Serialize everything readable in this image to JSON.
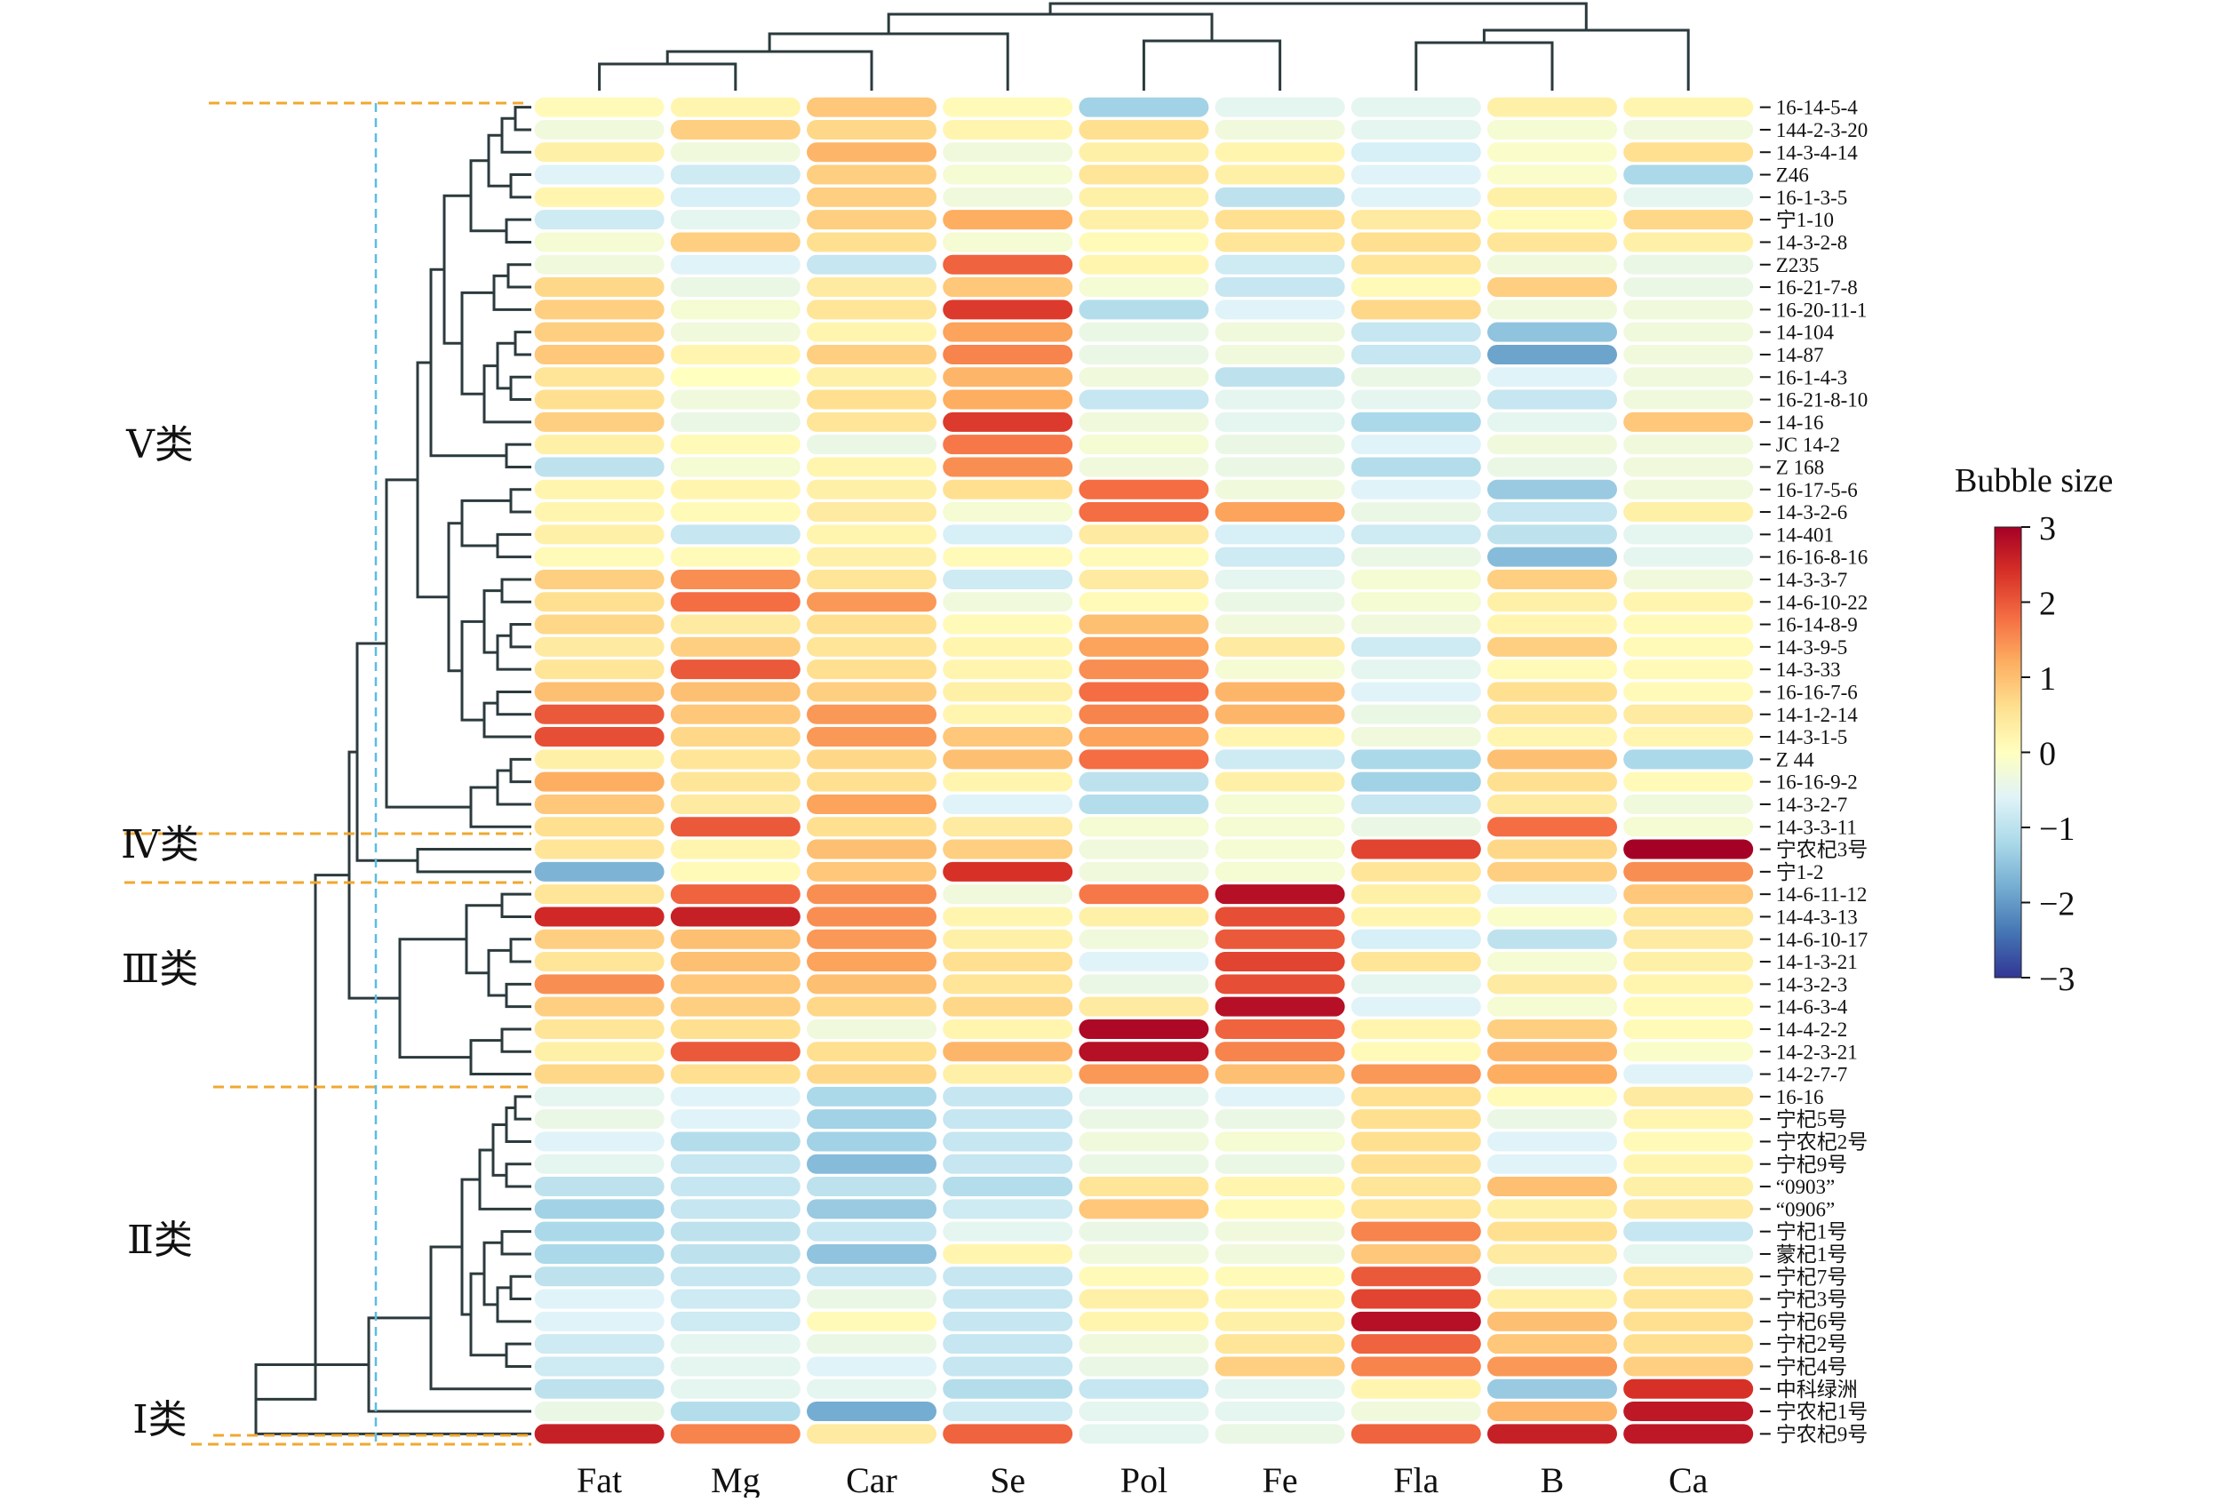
{
  "chart_data": {
    "type": "heatmap",
    "title": "",
    "xlabel": "",
    "ylabel": "",
    "columns": [
      "Fat",
      "Mg",
      "Car",
      "Se",
      "Pol",
      "Fe",
      "Fla",
      "B",
      "Ca"
    ],
    "rows": [
      "16-14-5-4",
      "144-2-3-20",
      "14-3-4-14",
      "Z46",
      "16-1-3-5",
      "宁1-10",
      "14-3-2-8",
      "Z235",
      "16-21-7-8",
      "16-20-11-1",
      "14-104",
      "14-87",
      "16-1-4-3",
      "16-21-8-10",
      "14-16",
      "JC 14-2",
      "Z 168",
      "16-17-5-6",
      "14-3-2-6",
      "14-401",
      "16-16-8-16",
      "14-3-3-7",
      "14-6-10-22",
      "16-14-8-9",
      "14-3-9-5",
      "14-3-33",
      "16-16-7-6",
      "14-1-2-14",
      "14-3-1-5",
      "Z 44",
      "16-16-9-2",
      "14-3-2-7",
      "14-3-3-11",
      "宁农杞3号",
      "宁1-2",
      "14-6-11-12",
      "14-4-3-13",
      "14-6-10-17",
      "14-1-3-21",
      "14-3-2-3",
      "14-6-3-4",
      "14-4-2-2",
      "14-2-3-21",
      "14-2-7-7",
      "16-16",
      "宁杞5号",
      "宁农杞2号",
      "宁杞9号",
      "“0903”",
      "“0906”",
      "宁杞1号",
      "蒙杞1号",
      "宁杞7号",
      "宁杞3号",
      "宁杞6号",
      "宁杞2号",
      "宁杞4号",
      "中科绿洲",
      "宁农杞1号",
      "宁农杞9号"
    ],
    "values": [
      [
        0.1,
        0.2,
        0.9,
        0.1,
        -1.3,
        -0.5,
        -0.5,
        0.3,
        0.2
      ],
      [
        -0.3,
        0.8,
        0.7,
        0.2,
        0.6,
        -0.3,
        -0.5,
        -0.2,
        -0.3
      ],
      [
        0.3,
        -0.3,
        1.1,
        -0.3,
        0.3,
        0.2,
        -0.7,
        -0.1,
        0.6
      ],
      [
        -0.6,
        -0.8,
        0.8,
        -0.2,
        0.5,
        0.3,
        -0.6,
        -0.1,
        -1.2
      ],
      [
        0.2,
        -0.7,
        0.8,
        -0.3,
        0.3,
        -1.0,
        -0.6,
        0.3,
        -0.5
      ],
      [
        -0.8,
        -0.5,
        0.8,
        1.2,
        0.3,
        0.6,
        0.4,
        0.1,
        0.7
      ],
      [
        -0.2,
        0.8,
        0.6,
        -0.2,
        0.1,
        0.5,
        0.6,
        0.5,
        0.3
      ],
      [
        -0.3,
        -0.6,
        -0.9,
        1.9,
        0.2,
        -0.8,
        0.5,
        -0.3,
        -0.4
      ],
      [
        0.7,
        -0.4,
        0.4,
        0.9,
        -0.2,
        -0.9,
        0.1,
        0.8,
        -0.4
      ],
      [
        0.8,
        -0.2,
        0.5,
        2.3,
        -1.1,
        -0.6,
        0.7,
        -0.3,
        -0.3
      ],
      [
        0.8,
        -0.3,
        0.2,
        1.3,
        -0.4,
        -0.3,
        -0.9,
        -1.5,
        -0.3
      ],
      [
        0.9,
        0.2,
        0.8,
        1.6,
        -0.4,
        -0.3,
        -0.9,
        -1.9,
        -0.3
      ],
      [
        0.5,
        0.0,
        0.3,
        1.1,
        -0.3,
        -1.0,
        -0.4,
        -0.6,
        -0.3
      ],
      [
        0.6,
        -0.3,
        0.6,
        1.2,
        -0.9,
        -0.5,
        -0.5,
        -0.9,
        -0.3
      ],
      [
        0.8,
        -0.4,
        0.5,
        2.3,
        -0.3,
        -0.5,
        -1.2,
        -0.5,
        0.9
      ],
      [
        0.3,
        0.1,
        -0.4,
        1.7,
        -0.2,
        -0.4,
        -0.6,
        -0.3,
        -0.3
      ],
      [
        -1.0,
        -0.2,
        0.2,
        1.5,
        -0.3,
        -0.4,
        -1.1,
        -0.4,
        -0.3
      ],
      [
        0.2,
        0.2,
        0.3,
        0.6,
        1.8,
        -0.3,
        -0.6,
        -1.4,
        -0.3
      ],
      [
        0.2,
        0.1,
        0.4,
        -0.2,
        1.8,
        1.3,
        -0.4,
        -0.9,
        0.3
      ],
      [
        0.3,
        -0.9,
        0.2,
        -0.7,
        0.4,
        -0.7,
        -0.8,
        -1.0,
        -0.5
      ],
      [
        0.1,
        0.1,
        0.3,
        0.1,
        0.1,
        -0.8,
        -0.4,
        -1.6,
        -0.5
      ],
      [
        0.8,
        1.5,
        0.5,
        -0.8,
        0.4,
        -0.5,
        -0.2,
        0.8,
        -0.3
      ],
      [
        0.6,
        1.8,
        1.4,
        -0.3,
        0.1,
        -0.4,
        -0.2,
        0.3,
        0.2
      ],
      [
        0.7,
        0.4,
        0.6,
        0.1,
        1.0,
        -0.3,
        -0.3,
        0.2,
        0.1
      ],
      [
        0.4,
        0.8,
        0.5,
        0.2,
        1.3,
        0.4,
        -0.8,
        0.8,
        0.1
      ],
      [
        0.5,
        2.0,
        0.6,
        0.2,
        1.5,
        -0.2,
        -0.5,
        0.1,
        0.1
      ],
      [
        1.0,
        1.0,
        0.8,
        0.3,
        1.8,
        1.1,
        -0.6,
        0.6,
        0.1
      ],
      [
        2.0,
        0.9,
        1.4,
        0.2,
        1.6,
        1.1,
        -0.4,
        0.5,
        0.4
      ],
      [
        2.1,
        0.7,
        1.4,
        0.9,
        1.3,
        0.2,
        -0.3,
        0.2,
        0.2
      ],
      [
        0.3,
        0.5,
        0.7,
        1.0,
        1.8,
        -0.8,
        -1.2,
        1.0,
        -1.2
      ],
      [
        1.2,
        0.5,
        0.6,
        0.2,
        -1.0,
        0.3,
        -1.3,
        0.6,
        0.1
      ],
      [
        0.9,
        0.4,
        1.3,
        -0.6,
        -1.1,
        -0.2,
        -0.9,
        0.4,
        -0.3
      ],
      [
        0.6,
        2.0,
        0.6,
        0.4,
        -0.2,
        -0.2,
        -0.4,
        1.8,
        -0.2
      ],
      [
        0.5,
        0.2,
        1.0,
        0.8,
        -0.3,
        -0.2,
        2.2,
        0.7,
        3.0
      ],
      [
        -1.7,
        0.1,
        0.9,
        2.4,
        -0.3,
        -0.2,
        0.5,
        0.8,
        1.5
      ],
      [
        0.5,
        1.9,
        1.5,
        -0.3,
        1.7,
        2.8,
        0.3,
        -0.6,
        0.9
      ],
      [
        2.5,
        2.6,
        1.5,
        0.2,
        0.3,
        2.1,
        0.2,
        -0.1,
        0.5
      ],
      [
        0.8,
        1.0,
        1.4,
        0.3,
        -0.3,
        2.0,
        -0.7,
        -1.0,
        0.4
      ],
      [
        0.5,
        1.0,
        1.3,
        0.6,
        -0.6,
        2.2,
        0.5,
        -0.2,
        0.3
      ],
      [
        1.5,
        0.9,
        1.0,
        0.5,
        -0.4,
        2.1,
        -0.5,
        0.4,
        0.2
      ],
      [
        0.8,
        0.8,
        0.7,
        0.7,
        0.4,
        2.8,
        -0.6,
        -0.2,
        0.1
      ],
      [
        0.5,
        0.6,
        -0.3,
        0.2,
        2.9,
        1.9,
        0.2,
        0.8,
        0.1
      ],
      [
        0.3,
        2.0,
        0.6,
        1.1,
        2.8,
        1.6,
        0.1,
        1.1,
        -0.1
      ],
      [
        0.7,
        0.6,
        0.7,
        0.3,
        1.4,
        1.0,
        1.4,
        1.2,
        -0.6
      ],
      [
        -0.5,
        -0.6,
        -1.2,
        -0.9,
        -0.5,
        -0.6,
        0.6,
        0.1,
        0.4
      ],
      [
        -0.4,
        -0.6,
        -1.3,
        -0.9,
        -0.4,
        -0.4,
        0.6,
        -0.4,
        0.2
      ],
      [
        -0.6,
        -1.1,
        -1.3,
        -0.9,
        -0.3,
        -0.2,
        0.6,
        -0.6,
        0.1
      ],
      [
        -0.5,
        -0.9,
        -1.6,
        -0.9,
        -0.4,
        -0.4,
        0.6,
        -0.6,
        0.2
      ],
      [
        -1.0,
        -0.9,
        -1.0,
        -1.1,
        0.5,
        0.2,
        0.5,
        1.0,
        0.3
      ],
      [
        -1.3,
        -0.9,
        -1.4,
        -0.8,
        0.9,
        0.1,
        0.5,
        0.3,
        0.4
      ],
      [
        -1.2,
        -1.0,
        -0.9,
        -0.5,
        -0.4,
        -0.3,
        1.6,
        0.6,
        -0.9
      ],
      [
        -1.2,
        -1.0,
        -1.5,
        0.2,
        -0.3,
        -0.3,
        0.9,
        0.4,
        -0.5
      ],
      [
        -1.0,
        -0.9,
        -0.9,
        -0.9,
        0.1,
        0.1,
        2.0,
        -0.5,
        0.4
      ],
      [
        -0.6,
        -0.8,
        -0.4,
        -0.9,
        0.3,
        0.2,
        2.2,
        0.3,
        0.5
      ],
      [
        -0.6,
        -0.8,
        0.1,
        -0.9,
        0.2,
        0.3,
        2.8,
        1.0,
        0.6
      ],
      [
        -0.8,
        -0.5,
        -0.4,
        -0.9,
        -0.3,
        0.5,
        1.9,
        0.9,
        0.6
      ],
      [
        -0.8,
        -0.5,
        -0.6,
        -0.9,
        -0.4,
        0.8,
        1.6,
        1.4,
        0.8
      ],
      [
        -1.0,
        -0.5,
        -0.5,
        -1.1,
        -0.9,
        -0.5,
        0.2,
        -1.4,
        2.4
      ],
      [
        -0.4,
        -1.1,
        -1.8,
        -0.8,
        -0.5,
        -0.5,
        -0.3,
        1.1,
        2.7
      ],
      [
        2.6,
        1.6,
        0.4,
        1.9,
        -0.5,
        -0.4,
        1.9,
        2.6,
        2.7
      ]
    ],
    "colorbar": {
      "title": "Bubble size",
      "vmin": -3,
      "vmax": 3,
      "ticks": [
        3,
        2,
        1,
        0,
        -1,
        -2,
        -3
      ],
      "tick_labels": [
        "3",
        "2",
        "1",
        "0",
        "−1",
        "−2",
        "−3"
      ],
      "colormap": "RdYlBu_r"
    },
    "group_labels": [
      "Ⅴ类",
      "Ⅳ类",
      "Ⅲ类",
      "Ⅱ类",
      "Ⅰ类"
    ],
    "group_row_ranges": [
      [
        0,
        32
      ],
      [
        33,
        34
      ],
      [
        35,
        43
      ],
      [
        44,
        58
      ],
      [
        59,
        59
      ]
    ],
    "group_line_color": "#f0a830",
    "cut_line_color": "#5bbde3",
    "dendrogram_color": "#2b3a3d",
    "column_dendrogram_order": [
      "Fat",
      "Mg",
      "Car",
      "Se",
      "Pol",
      "Fe",
      "Fla",
      "B",
      "Ca"
    ]
  }
}
